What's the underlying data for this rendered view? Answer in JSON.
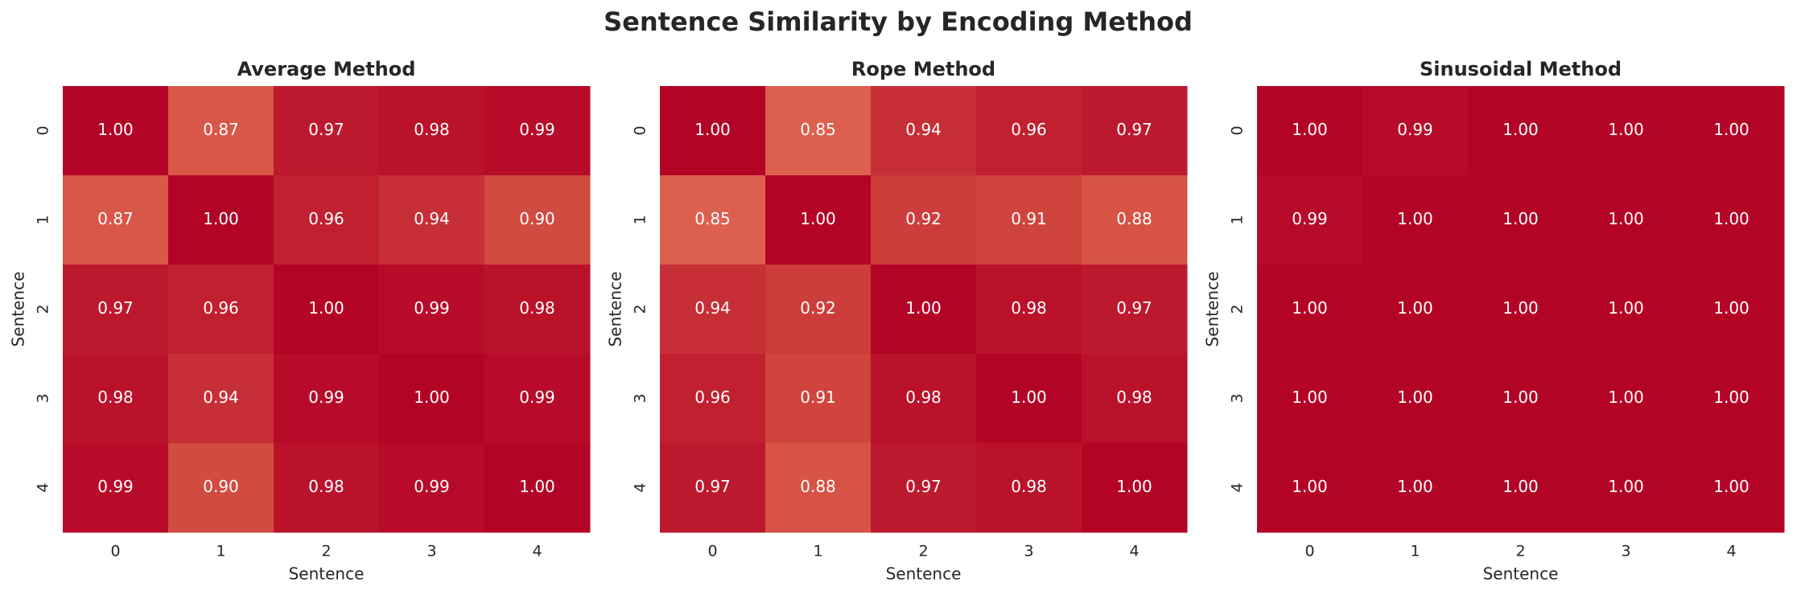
{
  "title": "Sentence Similarity by Encoding Method",
  "chart_data": [
    {
      "type": "heatmap",
      "title": "Average Method",
      "xlabel": "Sentence",
      "ylabel": "Sentence",
      "colormap": "coolwarm",
      "x": [
        0,
        1,
        2,
        3,
        4
      ],
      "y": [
        0,
        1,
        2,
        3,
        4
      ],
      "values": [
        [
          1.0,
          0.87,
          0.97,
          0.98,
          0.99
        ],
        [
          0.87,
          1.0,
          0.96,
          0.94,
          0.9
        ],
        [
          0.97,
          0.96,
          1.0,
          0.99,
          0.98
        ],
        [
          0.98,
          0.94,
          0.99,
          1.0,
          0.99
        ],
        [
          0.99,
          0.9,
          0.98,
          0.99,
          1.0
        ]
      ],
      "value_labels": [
        [
          "1.00",
          "0.87",
          "0.97",
          "0.98",
          "0.99"
        ],
        [
          "0.87",
          "1.00",
          "0.96",
          "0.94",
          "0.90"
        ],
        [
          "0.97",
          "0.96",
          "1.00",
          "0.99",
          "0.98"
        ],
        [
          "0.98",
          "0.94",
          "0.99",
          "1.00",
          "0.99"
        ],
        [
          "0.99",
          "0.90",
          "0.98",
          "0.99",
          "1.00"
        ]
      ]
    },
    {
      "type": "heatmap",
      "title": "Rope Method",
      "xlabel": "Sentence",
      "ylabel": "Sentence",
      "colormap": "coolwarm",
      "x": [
        0,
        1,
        2,
        3,
        4
      ],
      "y": [
        0,
        1,
        2,
        3,
        4
      ],
      "values": [
        [
          1.0,
          0.85,
          0.94,
          0.96,
          0.97
        ],
        [
          0.85,
          1.0,
          0.92,
          0.91,
          0.88
        ],
        [
          0.94,
          0.92,
          1.0,
          0.98,
          0.97
        ],
        [
          0.96,
          0.91,
          0.98,
          1.0,
          0.98
        ],
        [
          0.97,
          0.88,
          0.97,
          0.98,
          1.0
        ]
      ],
      "value_labels": [
        [
          "1.00",
          "0.85",
          "0.94",
          "0.96",
          "0.97"
        ],
        [
          "0.85",
          "1.00",
          "0.92",
          "0.91",
          "0.88"
        ],
        [
          "0.94",
          "0.92",
          "1.00",
          "0.98",
          "0.97"
        ],
        [
          "0.96",
          "0.91",
          "0.98",
          "1.00",
          "0.98"
        ],
        [
          "0.97",
          "0.88",
          "0.97",
          "0.98",
          "1.00"
        ]
      ]
    },
    {
      "type": "heatmap",
      "title": "Sinusoidal Method",
      "xlabel": "Sentence",
      "ylabel": "Sentence",
      "colormap": "coolwarm",
      "x": [
        0,
        1,
        2,
        3,
        4
      ],
      "y": [
        0,
        1,
        2,
        3,
        4
      ],
      "values": [
        [
          1.0,
          0.99,
          1.0,
          1.0,
          1.0
        ],
        [
          0.99,
          1.0,
          1.0,
          1.0,
          1.0
        ],
        [
          1.0,
          1.0,
          1.0,
          1.0,
          1.0
        ],
        [
          1.0,
          1.0,
          1.0,
          1.0,
          1.0
        ],
        [
          1.0,
          1.0,
          1.0,
          1.0,
          1.0
        ]
      ],
      "value_labels": [
        [
          "1.00",
          "0.99",
          "1.00",
          "1.00",
          "1.00"
        ],
        [
          "0.99",
          "1.00",
          "1.00",
          "1.00",
          "1.00"
        ],
        [
          "1.00",
          "1.00",
          "1.00",
          "1.00",
          "1.00"
        ],
        [
          "1.00",
          "1.00",
          "1.00",
          "1.00",
          "1.00"
        ],
        [
          "1.00",
          "1.00",
          "1.00",
          "1.00",
          "1.00"
        ]
      ]
    }
  ]
}
